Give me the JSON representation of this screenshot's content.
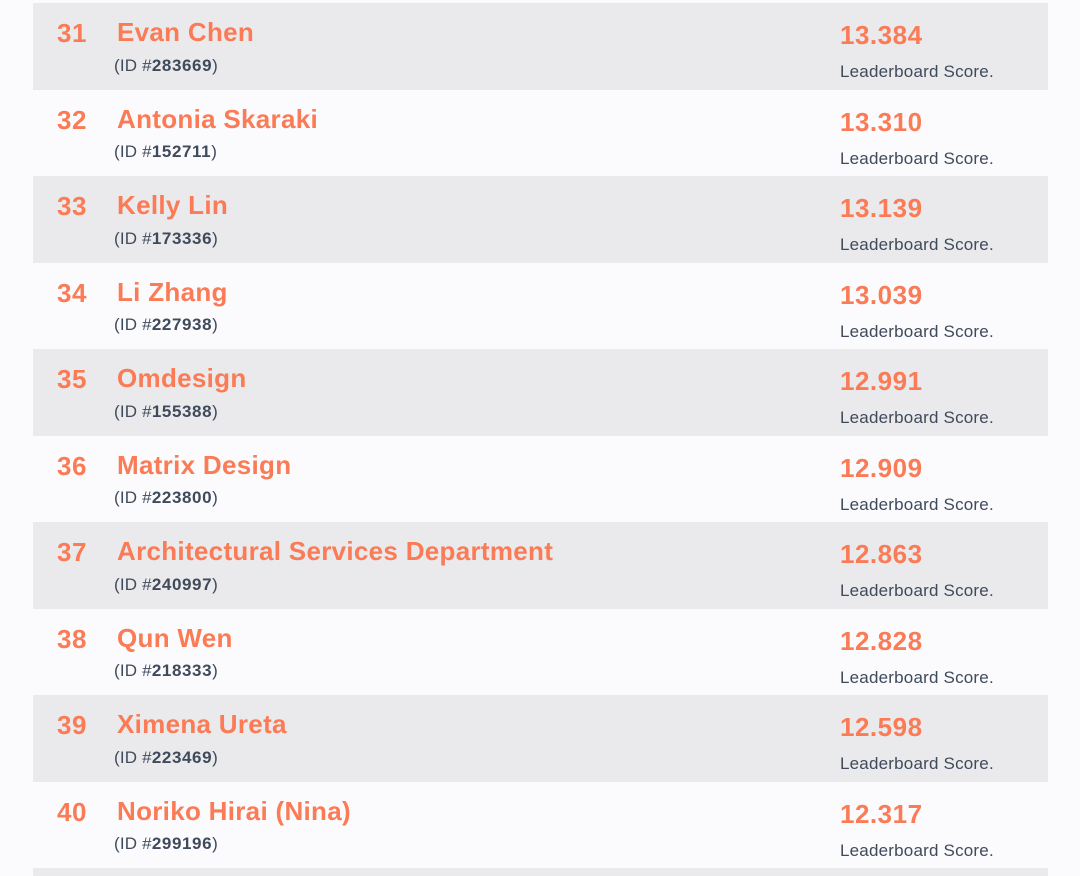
{
  "page": {
    "background": "#fbfbfd",
    "stripe_color": "#eaeaec",
    "accent_orange": "#fa7b55",
    "slate_text": "#3f4a5b"
  },
  "leaderboard": {
    "labels": {
      "id_prefix": "(ID #",
      "id_suffix": ")",
      "score_caption": "Leaderboard Score."
    },
    "rows": [
      {
        "rank": "31",
        "name": "Evan Chen",
        "id": "283669",
        "score": "13.384"
      },
      {
        "rank": "32",
        "name": "Antonia Skaraki",
        "id": "152711",
        "score": "13.310"
      },
      {
        "rank": "33",
        "name": "Kelly Lin",
        "id": "173336",
        "score": "13.139"
      },
      {
        "rank": "34",
        "name": "Li Zhang",
        "id": "227938",
        "score": "13.039"
      },
      {
        "rank": "35",
        "name": "Omdesign",
        "id": "155388",
        "score": "12.991"
      },
      {
        "rank": "36",
        "name": "Matrix Design",
        "id": "223800",
        "score": "12.909"
      },
      {
        "rank": "37",
        "name": "Architectural Services Department",
        "id": "240997",
        "score": "12.863"
      },
      {
        "rank": "38",
        "name": "Qun Wen",
        "id": "218333",
        "score": "12.828"
      },
      {
        "rank": "39",
        "name": "Ximena Ureta",
        "id": "223469",
        "score": "12.598"
      },
      {
        "rank": "40",
        "name": "Noriko Hirai (Nina)",
        "id": "299196",
        "score": "12.317"
      }
    ]
  }
}
